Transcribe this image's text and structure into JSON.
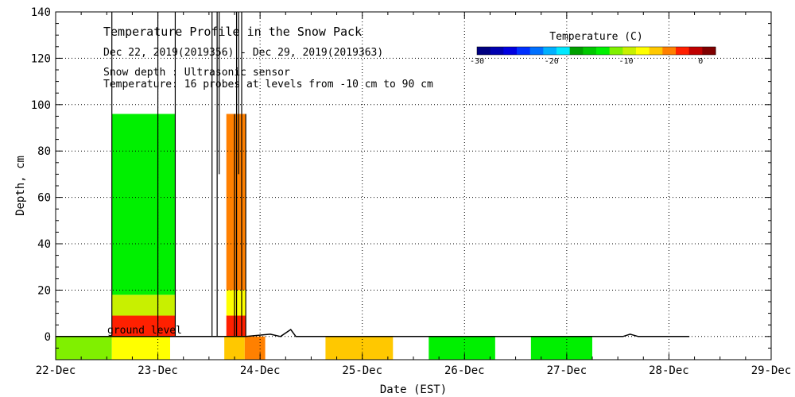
{
  "chart_data": {
    "type": "heatmap",
    "title": "Temperature Profile in the Snow Pack",
    "date_range": "Dec 22, 2019(2019356) - Dec 29, 2019(2019363)",
    "note_snow_depth": "Snow depth : Ultrasonic sensor",
    "note_temperature": "Temperature: 16 probes at levels from -10 cm to 90 cm",
    "ground_level_label": "ground level",
    "xlabel": "Date (EST)",
    "ylabel": "Depth, cm",
    "x_ticks": [
      "22-Dec",
      "23-Dec",
      "24-Dec",
      "25-Dec",
      "26-Dec",
      "27-Dec",
      "28-Dec",
      "29-Dec"
    ],
    "y_ticks": [
      0,
      20,
      40,
      60,
      80,
      100,
      120,
      140
    ],
    "xlim_days": [
      0,
      7
    ],
    "ylim": [
      -10,
      140
    ],
    "grid": true,
    "colorbar": {
      "title": "Temperature (C)",
      "ticks": [
        -30,
        -20,
        -10,
        0
      ],
      "range": [
        -30,
        2
      ],
      "colors": [
        "#000080",
        "#0000b0",
        "#0000e0",
        "#0030ff",
        "#0070ff",
        "#00b0ff",
        "#00e8ff",
        "#00a000",
        "#00c800",
        "#00f000",
        "#80f000",
        "#c8f000",
        "#ffff00",
        "#ffc800",
        "#ff8000",
        "#ff2000",
        "#c00000",
        "#800000"
      ]
    },
    "temperature_blocks": [
      {
        "start": 0.0,
        "end": 0.55,
        "bottom": -10,
        "top": 0,
        "color": "#80f000"
      },
      {
        "start": 0.55,
        "end": 1.12,
        "bottom": -10,
        "top": 0,
        "color": "#ffff00"
      },
      {
        "start": 0.55,
        "end": 1.17,
        "bottom": 0,
        "top": 9,
        "color": "#ff2000"
      },
      {
        "start": 0.55,
        "end": 1.17,
        "bottom": 9,
        "top": 18,
        "color": "#c8f000"
      },
      {
        "start": 0.55,
        "end": 1.17,
        "bottom": 18,
        "top": 96,
        "color": "#00f000"
      },
      {
        "start": 1.65,
        "end": 1.85,
        "bottom": -10,
        "top": 0,
        "color": "#ffc800"
      },
      {
        "start": 1.85,
        "end": 2.05,
        "bottom": -10,
        "top": 0,
        "color": "#ff8000"
      },
      {
        "start": 1.67,
        "end": 1.86,
        "bottom": 0,
        "top": 9,
        "color": "#ff2000"
      },
      {
        "start": 1.67,
        "end": 1.86,
        "bottom": 9,
        "top": 20,
        "color": "#ffff00"
      },
      {
        "start": 1.67,
        "end": 1.86,
        "bottom": 20,
        "top": 96,
        "color": "#ff8000"
      },
      {
        "start": 2.64,
        "end": 3.3,
        "bottom": -10,
        "top": 0,
        "color": "#ffc800"
      },
      {
        "start": 3.65,
        "end": 4.3,
        "bottom": -10,
        "top": 0,
        "color": "#00f000"
      },
      {
        "start": 4.65,
        "end": 5.25,
        "bottom": -10,
        "top": 0,
        "color": "#00f000"
      }
    ],
    "snow_depth_spikes": [
      {
        "x": 1.53,
        "y0": 0,
        "y1": 140
      },
      {
        "x": 1.58,
        "y0": 0,
        "y1": 140
      },
      {
        "x": 1.6,
        "y0": 70,
        "y1": 140
      },
      {
        "x": 1.77,
        "y0": 0,
        "y1": 140
      },
      {
        "x": 1.79,
        "y0": 70,
        "y1": 140
      },
      {
        "x": 1.82,
        "y0": 0,
        "y1": 140
      },
      {
        "x": 0.55,
        "y0": 0,
        "y1": 140
      },
      {
        "x": 1.0,
        "y0": 0,
        "y1": 140
      },
      {
        "x": 1.17,
        "y0": 0,
        "y1": 140
      },
      {
        "x": 1.75,
        "y0": 0,
        "y1": 96
      },
      {
        "x": 1.86,
        "y0": 0,
        "y1": 96
      }
    ],
    "snow_depth_trace": [
      [
        0,
        0
      ],
      [
        1.86,
        0
      ],
      [
        2.1,
        1
      ],
      [
        2.2,
        0
      ],
      [
        2.3,
        3
      ],
      [
        2.35,
        0
      ],
      [
        4.0,
        0
      ],
      [
        5.0,
        0
      ],
      [
        5.2,
        0
      ],
      [
        5.55,
        0
      ],
      [
        5.62,
        1
      ],
      [
        5.7,
        0
      ],
      [
        6.2,
        0
      ]
    ]
  }
}
